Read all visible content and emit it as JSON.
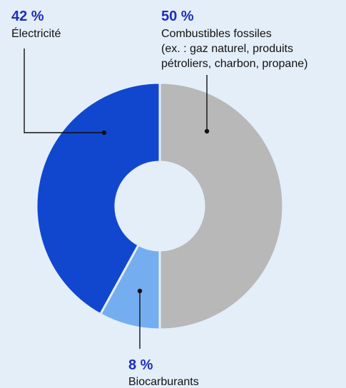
{
  "chart_data": {
    "type": "pie",
    "variant": "donut",
    "slices": [
      {
        "key": "fossil",
        "label": "Combustibles fossiles",
        "label_lines": [
          "Combustibles fossiles",
          "(ex. : gaz naturel, produits",
          "pétroliers, charbon, propane)"
        ],
        "value": 50,
        "display": "50 %",
        "color": "#b8b8b8"
      },
      {
        "key": "bio",
        "label": "Biocarburants",
        "label_lines": [
          "Biocarburants"
        ],
        "value": 8,
        "display": "8 %",
        "color": "#74aef0"
      },
      {
        "key": "elec",
        "label": "Électricité",
        "label_lines": [
          "Électricité"
        ],
        "value": 42,
        "display": "42 %",
        "color": "#1147cf"
      }
    ],
    "title": "",
    "start": "12 o'clock",
    "direction": "clockwise",
    "background": "#e4eef9",
    "text_color": "#111111",
    "value_color": "#1e2dbb"
  }
}
